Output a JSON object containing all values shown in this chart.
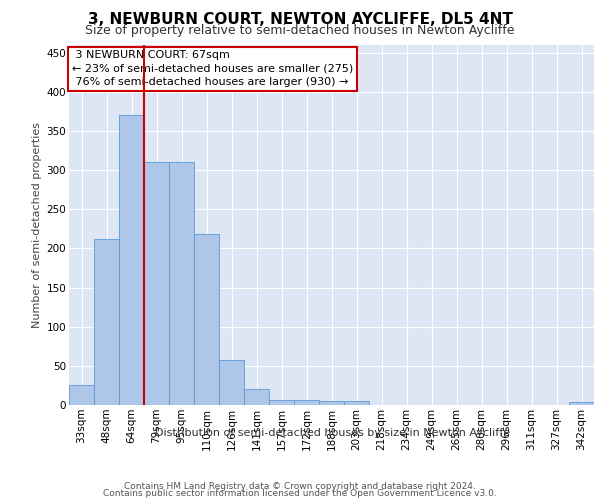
{
  "title": "3, NEWBURN COURT, NEWTON AYCLIFFE, DL5 4NT",
  "subtitle": "Size of property relative to semi-detached houses in Newton Aycliffe",
  "xlabel": "Distribution of semi-detached houses by size in Newton Aycliffe",
  "ylabel": "Number of semi-detached properties",
  "footer_line1": "Contains HM Land Registry data © Crown copyright and database right 2024.",
  "footer_line2": "Contains public sector information licensed under the Open Government Licence v3.0.",
  "categories": [
    "33sqm",
    "48sqm",
    "64sqm",
    "79sqm",
    "95sqm",
    "110sqm",
    "126sqm",
    "141sqm",
    "157sqm",
    "172sqm",
    "188sqm",
    "203sqm",
    "218sqm",
    "234sqm",
    "249sqm",
    "265sqm",
    "280sqm",
    "296sqm",
    "311sqm",
    "327sqm",
    "342sqm"
  ],
  "values": [
    25,
    212,
    370,
    311,
    311,
    219,
    57,
    20,
    7,
    7,
    5,
    5,
    0,
    0,
    0,
    0,
    0,
    0,
    0,
    0,
    4
  ],
  "bar_color": "#aec6e8",
  "bar_edge_color": "#5b9bd5",
  "property_label": "3 NEWBURN COURT: 67sqm",
  "pct_smaller": 23,
  "n_smaller": 275,
  "pct_larger": 76,
  "n_larger": 930,
  "annotation_box_color": "#cc0000",
  "vline_color": "#cc0000",
  "vline_position": 2.5,
  "ylim": [
    0,
    460
  ],
  "yticks": [
    0,
    50,
    100,
    150,
    200,
    250,
    300,
    350,
    400,
    450
  ],
  "background_color": "#dce6f5",
  "grid_color": "#ffffff",
  "title_fontsize": 11,
  "subtitle_fontsize": 9,
  "axis_label_fontsize": 8,
  "tick_fontsize": 7.5,
  "annotation_fontsize": 8,
  "footer_fontsize": 6.5
}
